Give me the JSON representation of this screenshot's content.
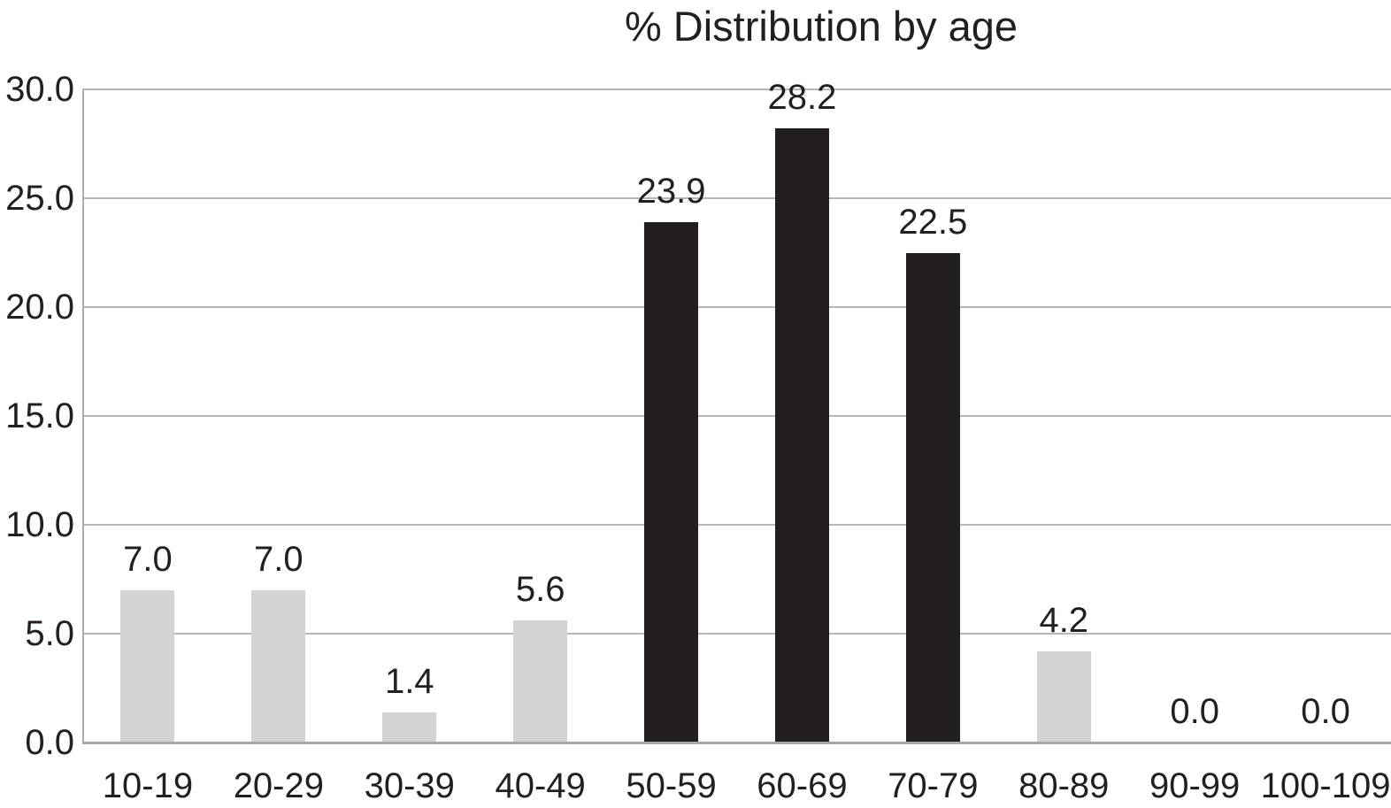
{
  "title": "% Distribution by age",
  "colors": {
    "bar_gray": "#d3d3d4",
    "bar_black": "#221e1f",
    "gridline": "#b7b7b7",
    "axis": "#a7a7a7",
    "text": "#231f20",
    "background": "#ffffff"
  },
  "chart_data": {
    "type": "bar",
    "title": "% Distribution by age",
    "categories": [
      "10-19",
      "20-29",
      "30-39",
      "40-49",
      "50-59",
      "60-69",
      "70-79",
      "80-89",
      "90-99",
      "100-109"
    ],
    "values": [
      7.0,
      7.0,
      1.4,
      5.6,
      23.9,
      28.2,
      22.5,
      4.2,
      0.0,
      0.0
    ],
    "value_labels": [
      "7.0",
      "7.0",
      "1.4",
      "5.6",
      "23.9",
      "28.2",
      "22.5",
      "4.2",
      "0.0",
      "0.0"
    ],
    "bar_styles": [
      "gray",
      "gray",
      "gray",
      "gray",
      "black",
      "black",
      "black",
      "gray",
      "gray",
      "gray"
    ],
    "xlabel": "",
    "ylabel": "",
    "ylim": [
      0,
      30
    ],
    "ytick_interval": 5,
    "ytick_labels": [
      "0.0",
      "5.0",
      "10.0",
      "15.0",
      "20.0",
      "25.0",
      "30.0"
    ],
    "grid": "horizontal",
    "legend": "none"
  }
}
